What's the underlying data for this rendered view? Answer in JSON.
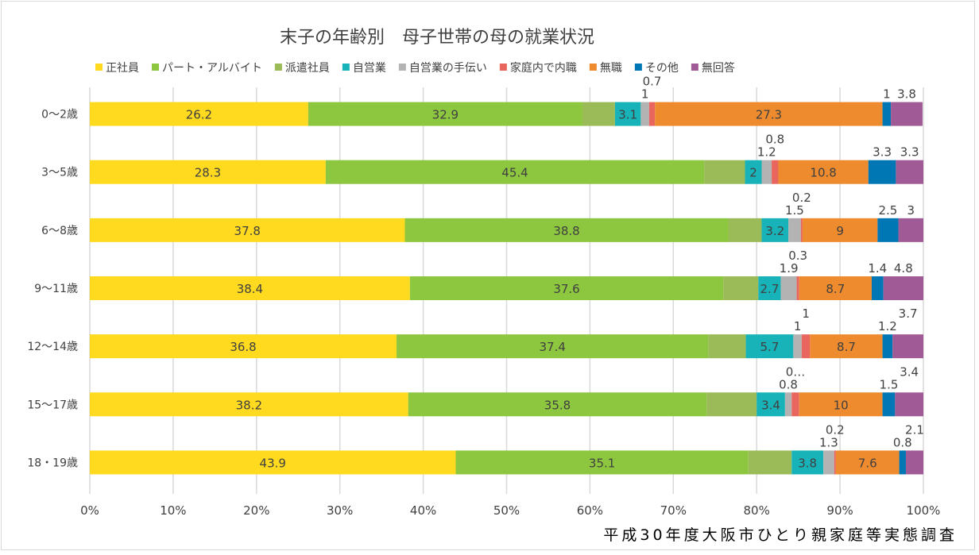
{
  "chart_data": {
    "type": "bar",
    "orientation": "horizontal",
    "stacked": "percent",
    "title": "末子の年齢別　母子世帯の母の就業状況",
    "source": "平成30年度大阪市ひとり親家庭等実態調査",
    "legend_position": "top",
    "grid": true,
    "xlim": [
      0,
      100
    ],
    "x_ticks": [
      "0%",
      "10%",
      "20%",
      "30%",
      "40%",
      "50%",
      "60%",
      "70%",
      "80%",
      "90%",
      "100%"
    ],
    "categories": [
      "0～2歳",
      "3～5歳",
      "6～8歳",
      "9～11歳",
      "12～14歳",
      "15～17歳",
      "18・19歳"
    ],
    "series": [
      {
        "name": "正社員",
        "color": "#FFDA1F",
        "values": [
          26.2,
          28.3,
          37.8,
          38.4,
          36.8,
          38.2,
          43.9
        ],
        "labels": [
          "26.2",
          "28.3",
          "37.8",
          "38.4",
          "36.8",
          "38.2",
          "43.9"
        ]
      },
      {
        "name": "パート・アルバイト",
        "color": "#8DC63F",
        "values": [
          32.9,
          45.4,
          38.8,
          37.6,
          37.4,
          35.8,
          35.1
        ],
        "labels": [
          "32.9",
          "45.4",
          "38.8",
          "37.6",
          "37.4",
          "35.8",
          "35.1"
        ]
      },
      {
        "name": "派遣社員",
        "color": "#9BBB59",
        "values": [
          3.9,
          4.9,
          4.0,
          4.2,
          4.5,
          6.0,
          5.2
        ],
        "labels": [
          "",
          "",
          "",
          "",
          "",
          "",
          ""
        ]
      },
      {
        "name": "自営業",
        "color": "#17B3B8",
        "values": [
          3.1,
          2,
          3.2,
          2.7,
          5.7,
          3.4,
          3.8
        ],
        "labels": [
          "3.1",
          "2",
          "3.2",
          "2.7",
          "5.7",
          "3.4",
          "3.8"
        ]
      },
      {
        "name": "自営業の手伝い",
        "color": "#B3B3B3",
        "values": [
          1,
          1.2,
          1.5,
          1.9,
          1,
          0.8,
          1.3
        ],
        "labels": [
          "1",
          "1.2",
          "1.5",
          "1.9",
          "1",
          "0.8",
          "1.3"
        ]
      },
      {
        "name": "家庭内で内職",
        "color": "#E8665E",
        "values": [
          0.7,
          0.8,
          0.2,
          0.3,
          1,
          0.9,
          0.2
        ],
        "labels": [
          "0.7",
          "0.8",
          "0.2",
          "0.3",
          "1",
          "0…",
          "0.2"
        ]
      },
      {
        "name": "無職",
        "color": "#ED8B2E",
        "values": [
          27.3,
          10.8,
          9,
          8.7,
          8.7,
          10,
          7.6
        ],
        "labels": [
          "27.3",
          "10.8",
          "9",
          "8.7",
          "8.7",
          "10",
          "7.6"
        ]
      },
      {
        "name": "その他",
        "color": "#0077B5",
        "values": [
          1,
          3.3,
          2.5,
          1.4,
          1.2,
          1.5,
          0.8
        ],
        "labels": [
          "1",
          "3.3",
          "2.5",
          "1.4",
          "1.2",
          "1.5",
          "0.8"
        ]
      },
      {
        "name": "無回答",
        "color": "#A05A96",
        "values": [
          3.8,
          3.3,
          3,
          4.8,
          3.7,
          3.4,
          2.1
        ],
        "labels": [
          "3.8",
          "3.3",
          "3",
          "4.8",
          "3.7",
          "3.4",
          "2.1"
        ]
      }
    ]
  }
}
